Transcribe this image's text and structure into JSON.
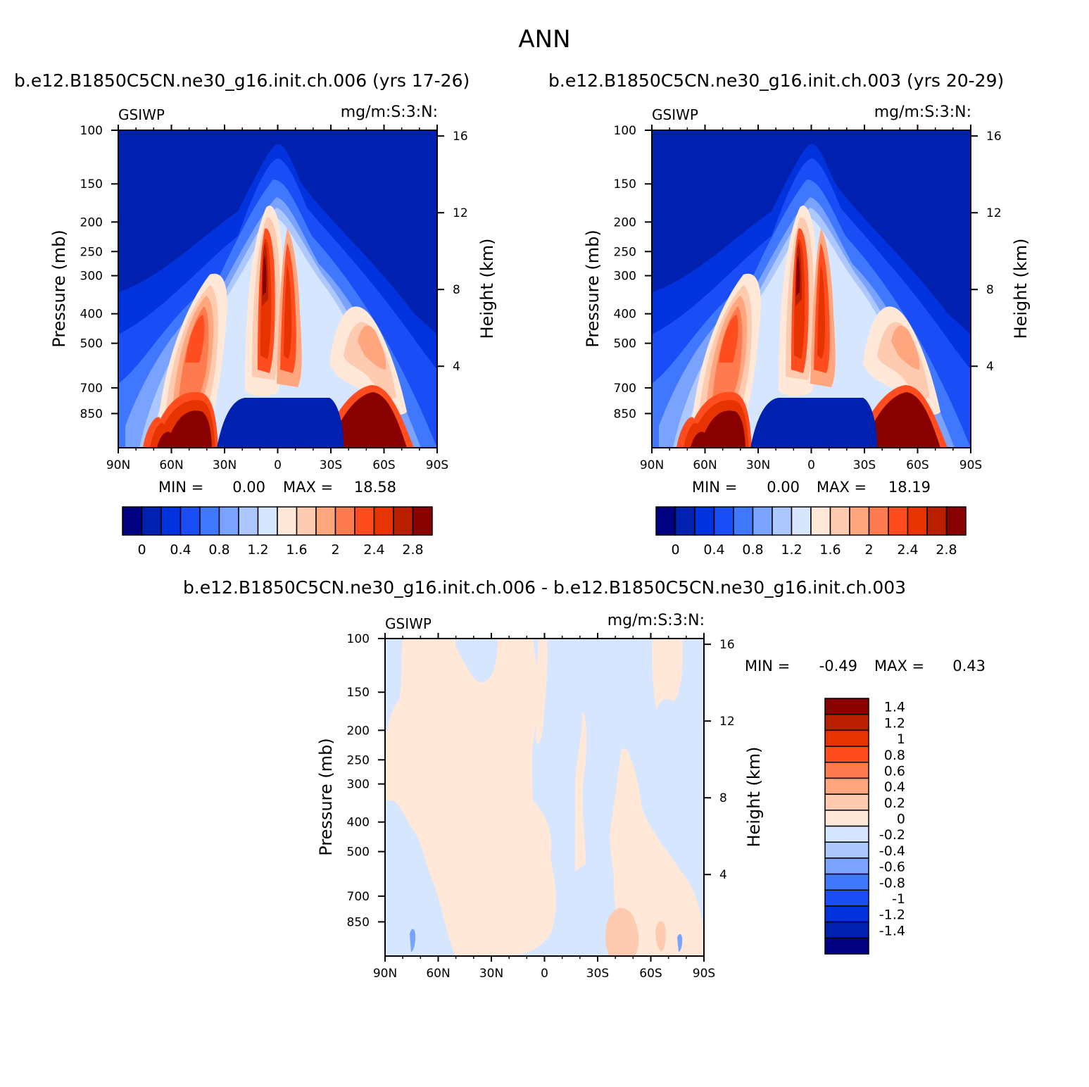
{
  "title": "ANN",
  "colors": {
    "main_scale": [
      "#000080",
      "#0020b0",
      "#0033dd",
      "#1a4df5",
      "#3f77ff",
      "#7aa2ff",
      "#adc7ff",
      "#d6e6ff",
      "#ffe8d8",
      "#ffcbb0",
      "#ffa67f",
      "#fe7a4f",
      "#ff4d1f",
      "#e63300",
      "#b82000",
      "#880000"
    ],
    "diff_scale": [
      "#000080",
      "#0020b0",
      "#0033dd",
      "#1a4df5",
      "#3f77ff",
      "#7aa2ff",
      "#adc7ff",
      "#d6e6ff",
      "#ffe8d8",
      "#ffcbb0",
      "#ffa67f",
      "#fe7a4f",
      "#ff4d1f",
      "#e63300",
      "#b82000",
      "#880000"
    ]
  },
  "chart_data": [
    {
      "type": "heatmap",
      "title": "b.e12.B1850C5CN.ne30_g16.init.ch.006 (yrs 17-26)",
      "variable": "GSIWP",
      "units": "mg/m:S:3:N:",
      "ylabel": "Pressure (mb)",
      "ylabel_right": "Height (km)",
      "x_ticks": [
        "90N",
        "60N",
        "30N",
        "0",
        "30S",
        "60S",
        "90S"
      ],
      "y_ticks": [
        "100",
        "150",
        "200",
        "250",
        "300",
        "400",
        "500",
        "700",
        "850"
      ],
      "y_ticks_right": [
        "16",
        "12",
        "8",
        "4"
      ],
      "min_label": "MIN =",
      "min": "0.00",
      "max_label": "MAX =",
      "max": "18.58",
      "colorbar_labels": [
        "0",
        "0.4",
        "0.8",
        "1.2",
        "1.6",
        "2",
        "2.4",
        "2.8"
      ]
    },
    {
      "type": "heatmap",
      "title": "b.e12.B1850C5CN.ne30_g16.init.ch.003 (yrs 20-29)",
      "variable": "GSIWP",
      "units": "mg/m:S:3:N:",
      "ylabel": "Pressure (mb)",
      "ylabel_right": "Height (km)",
      "x_ticks": [
        "90N",
        "60N",
        "30N",
        "0",
        "30S",
        "60S",
        "90S"
      ],
      "y_ticks": [
        "100",
        "150",
        "200",
        "250",
        "300",
        "400",
        "500",
        "700",
        "850"
      ],
      "y_ticks_right": [
        "16",
        "12",
        "8",
        "4"
      ],
      "min_label": "MIN =",
      "min": "0.00",
      "max_label": "MAX =",
      "max": "18.19",
      "colorbar_labels": [
        "0",
        "0.4",
        "0.8",
        "1.2",
        "1.6",
        "2",
        "2.4",
        "2.8"
      ]
    },
    {
      "type": "heatmap",
      "title": "b.e12.B1850C5CN.ne30_g16.init.ch.006 - b.e12.B1850C5CN.ne30_g16.init.ch.003",
      "variable": "GSIWP",
      "units": "mg/m:S:3:N:",
      "ylabel": "Pressure (mb)",
      "ylabel_right": "Height (km)",
      "x_ticks": [
        "90N",
        "60N",
        "30N",
        "0",
        "30S",
        "60S",
        "90S"
      ],
      "y_ticks": [
        "100",
        "150",
        "200",
        "250",
        "300",
        "400",
        "500",
        "700",
        "850"
      ],
      "y_ticks_right": [
        "16",
        "12",
        "8",
        "4"
      ],
      "min_label": "MIN =",
      "min": "-0.49",
      "max_label": "MAX =",
      "max": "0.43",
      "colorbar_labels": [
        "1.4",
        "1.2",
        "1",
        "0.8",
        "0.6",
        "0.4",
        "0.2",
        "0",
        "-0.2",
        "-0.4",
        "-0.6",
        "-0.8",
        "-1",
        "-1.2",
        "-1.4"
      ]
    }
  ]
}
